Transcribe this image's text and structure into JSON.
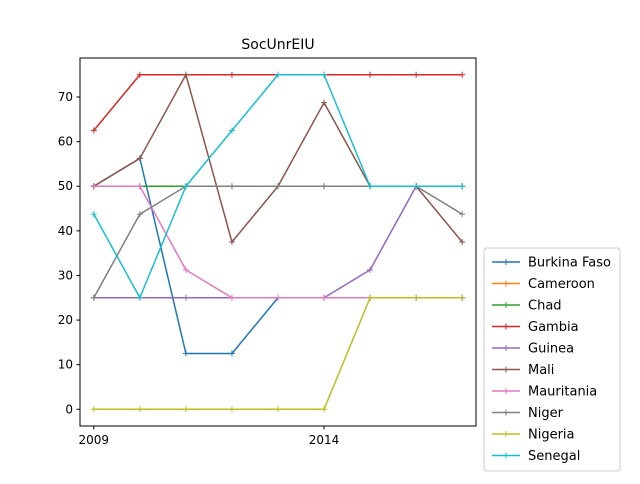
{
  "chart_data": {
    "type": "line",
    "title": "SocUnrEIU",
    "xlabel": "",
    "ylabel": "",
    "x": [
      2009,
      2010,
      2011,
      2012,
      2013,
      2014,
      2015,
      2016,
      2017
    ],
    "xlim": [
      2008.7,
      2017.3
    ],
    "ylim": [
      -3.75,
      78.75
    ],
    "x_ticks": [
      2009,
      2014
    ],
    "y_ticks": [
      0,
      10,
      20,
      30,
      40,
      50,
      60,
      70
    ],
    "grid": false,
    "legend_position": "outside-right-bottom",
    "marker": "plus",
    "series": [
      {
        "name": "Burkina Faso",
        "color": "#1f77b4",
        "values": [
          50,
          56.25,
          12.5,
          12.5,
          25,
          25,
          25,
          25,
          25
        ]
      },
      {
        "name": "Cameroon",
        "color": "#ff7f0e",
        "values": [
          null,
          null,
          null,
          null,
          null,
          null,
          null,
          null,
          null
        ]
      },
      {
        "name": "Chad",
        "color": "#2ca02c",
        "values": [
          50,
          50,
          50,
          50,
          50,
          50,
          50,
          50,
          50
        ]
      },
      {
        "name": "Gambia",
        "color": "#d62728",
        "values": [
          62.5,
          75,
          75,
          75,
          75,
          75,
          75,
          75,
          75
        ]
      },
      {
        "name": "Guinea",
        "color": "#9467bd",
        "values": [
          25,
          25,
          25,
          25,
          25,
          25,
          31.25,
          50,
          50
        ]
      },
      {
        "name": "Mali",
        "color": "#8c564b",
        "values": [
          50,
          56.25,
          75,
          37.5,
          50,
          68.75,
          50,
          50,
          37.5
        ]
      },
      {
        "name": "Mauritania",
        "color": "#e377c2",
        "values": [
          50,
          50,
          31.25,
          25,
          25,
          25,
          25,
          25,
          25
        ]
      },
      {
        "name": "Niger",
        "color": "#7f7f7f",
        "values": [
          25,
          43.75,
          50,
          50,
          50,
          50,
          50,
          50,
          43.75
        ]
      },
      {
        "name": "Nigeria",
        "color": "#bcbd22",
        "values": [
          0,
          0,
          0,
          0,
          0,
          0,
          25,
          25,
          25
        ]
      },
      {
        "name": "Senegal",
        "color": "#17becf",
        "values": [
          43.75,
          25,
          50,
          62.5,
          75,
          75,
          50,
          50,
          50
        ]
      }
    ]
  }
}
